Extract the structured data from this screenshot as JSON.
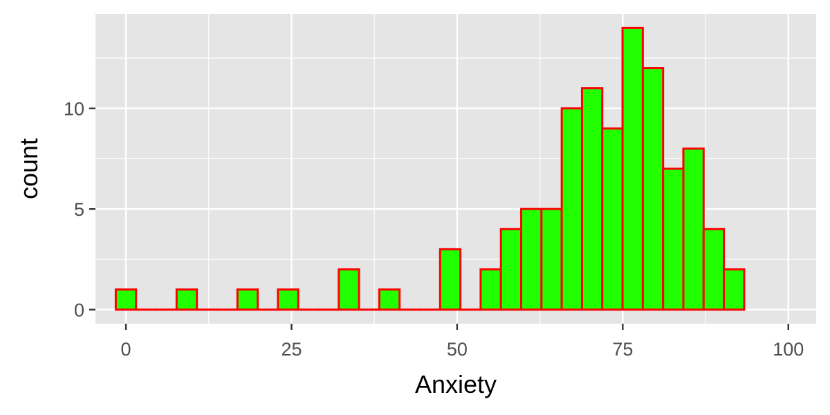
{
  "chart_data": {
    "type": "bar",
    "subtype": "histogram",
    "title": "",
    "xlabel": "Anxiety",
    "ylabel": "count",
    "bin_width": 3.06,
    "bins": [
      {
        "center": 0.0,
        "count": 1
      },
      {
        "center": 3.06,
        "count": 0
      },
      {
        "center": 6.12,
        "count": 0
      },
      {
        "center": 9.18,
        "count": 1
      },
      {
        "center": 12.24,
        "count": 0
      },
      {
        "center": 15.3,
        "count": 0
      },
      {
        "center": 18.36,
        "count": 1
      },
      {
        "center": 21.42,
        "count": 0
      },
      {
        "center": 24.48,
        "count": 1
      },
      {
        "center": 27.54,
        "count": 0
      },
      {
        "center": 30.6,
        "count": 0
      },
      {
        "center": 33.66,
        "count": 2
      },
      {
        "center": 36.72,
        "count": 0
      },
      {
        "center": 39.78,
        "count": 1
      },
      {
        "center": 42.84,
        "count": 0
      },
      {
        "center": 45.9,
        "count": 0
      },
      {
        "center": 48.96,
        "count": 3
      },
      {
        "center": 52.02,
        "count": 0
      },
      {
        "center": 55.08,
        "count": 2
      },
      {
        "center": 58.14,
        "count": 4
      },
      {
        "center": 61.2,
        "count": 5
      },
      {
        "center": 64.26,
        "count": 5
      },
      {
        "center": 67.32,
        "count": 10
      },
      {
        "center": 70.38,
        "count": 11
      },
      {
        "center": 73.44,
        "count": 9
      },
      {
        "center": 76.5,
        "count": 14
      },
      {
        "center": 79.56,
        "count": 12
      },
      {
        "center": 82.62,
        "count": 7
      },
      {
        "center": 85.68,
        "count": 8
      },
      {
        "center": 88.74,
        "count": 4
      },
      {
        "center": 91.8,
        "count": 2
      }
    ],
    "xlim": [
      -4.6,
      104.2
    ],
    "ylim": [
      -0.7,
      14.7
    ],
    "x_ticks": [
      0,
      25,
      50,
      75,
      100
    ],
    "x_tick_labels": [
      "0",
      "25",
      "50",
      "75",
      "100"
    ],
    "y_ticks": [
      0,
      5,
      10
    ],
    "y_tick_labels": [
      "0",
      "5",
      "10"
    ],
    "grid": true,
    "colors": {
      "bar_fill": "#22ff00",
      "bar_stroke": "#ff0000",
      "panel_background": "#e5e5e5",
      "grid": "#ffffff",
      "tick_text": "#4d4d4d",
      "axis_title": "#000000"
    }
  }
}
